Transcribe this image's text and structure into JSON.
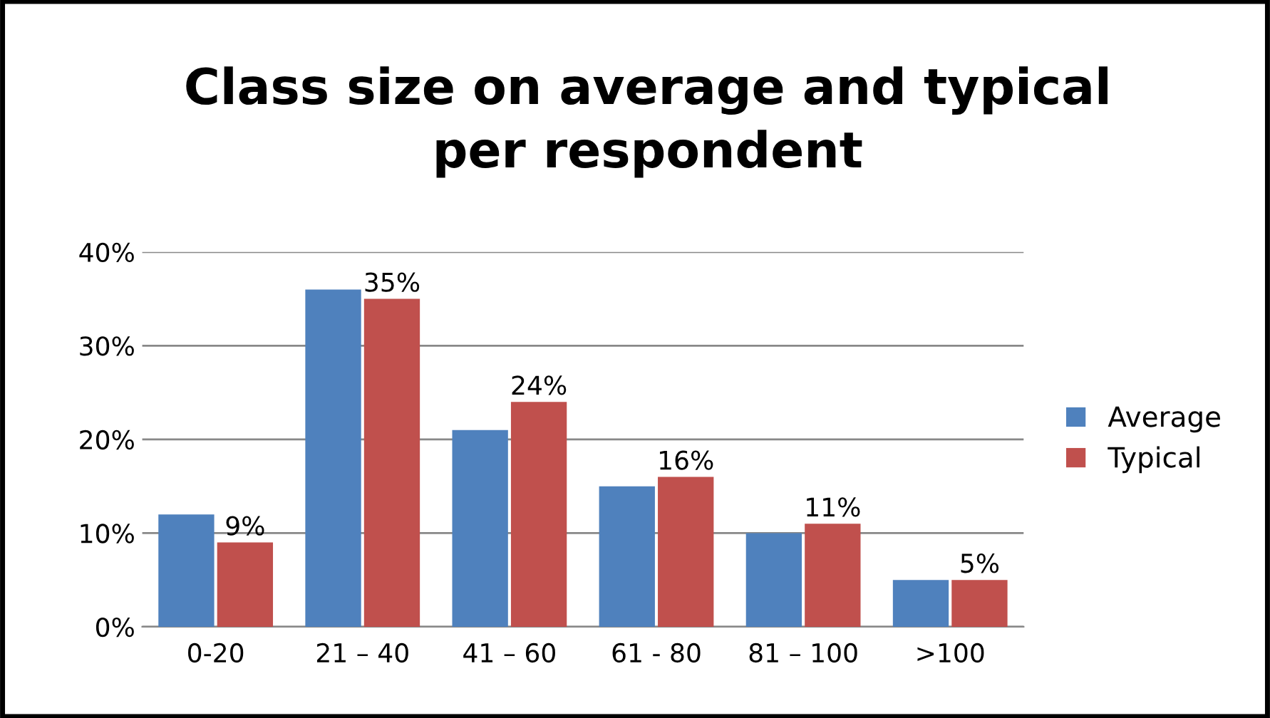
{
  "chart_data": {
    "type": "bar",
    "title": "Class size on average and typical\nper respondent",
    "categories": [
      "0-20",
      "21 – 40",
      "41 – 60",
      "61 - 80",
      "81 – 100",
      ">100"
    ],
    "series": [
      {
        "name": "Average",
        "color": "#4f81bd",
        "values": [
          12,
          36,
          21,
          15,
          10,
          5
        ]
      },
      {
        "name": "Typical",
        "color": "#c0504d",
        "values": [
          9,
          35,
          24,
          16,
          11,
          5
        ],
        "value_labels": [
          "9%",
          "35%",
          "24%",
          "16%",
          "11%",
          "5%"
        ]
      }
    ],
    "ylim": [
      0,
      40
    ],
    "yticks": [
      {
        "value": 0,
        "label": "0%"
      },
      {
        "value": 10,
        "label": "10%"
      },
      {
        "value": 20,
        "label": "20%"
      },
      {
        "value": 30,
        "label": "30%"
      },
      {
        "value": 40,
        "label": "40%"
      }
    ],
    "grid": "y",
    "legend": "right"
  }
}
